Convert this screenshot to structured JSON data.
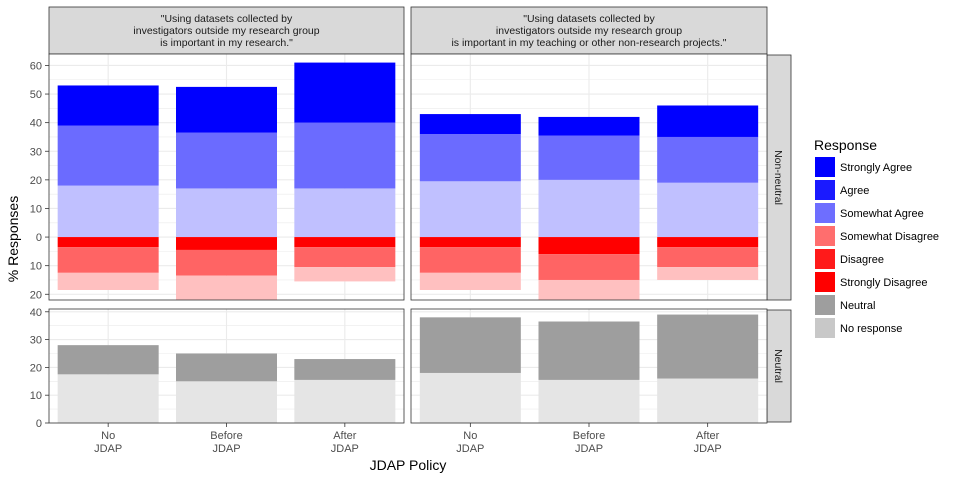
{
  "chart_data": {
    "type": "bar",
    "layout": "faceted stacked diverging bar chart",
    "xlabel": "JDAP Policy",
    "ylabel": "% Responses",
    "categories": [
      "No\nJDAP",
      "Before\nJDAP",
      "After\nJDAP"
    ],
    "columns": [
      "\"Using datasets collected by\ninvestigators outside my research group\nis important in my research.\"",
      "\"Using datasets collected by\ninvestigators outside my research group\nis important in my teaching or other non-research projects.\""
    ],
    "rows": [
      "Non-neutral",
      "Neutral"
    ],
    "row_ticks": {
      "Non-neutral": [
        "60",
        "50",
        "40",
        "30",
        "20",
        "10",
        "0",
        "10",
        "20"
      ],
      "Neutral": [
        "40",
        "30",
        "20",
        "10",
        "0"
      ]
    },
    "ylim": {
      "Non-neutral": [
        -22,
        64
      ],
      "Neutral": [
        0,
        41
      ]
    },
    "grid": true,
    "legend": {
      "title": "Response",
      "placement": "right",
      "items": [
        {
          "label": "Strongly Agree",
          "color": "#0000ff"
        },
        {
          "label": "Agree",
          "color": "#1a1aff"
        },
        {
          "label": "Somewhat Agree",
          "color": "#6e6eff"
        },
        {
          "label": "Somewhat Disagree",
          "color": "#ff6e6e"
        },
        {
          "label": "Disagree",
          "color": "#ff1a1a"
        },
        {
          "label": "Strongly Disagree",
          "color": "#ff0000"
        },
        {
          "label": "Neutral",
          "color": "#9e9e9e"
        },
        {
          "label": "No response",
          "color": "#c8c8c8"
        }
      ]
    },
    "panels": [
      {
        "column": 0,
        "row": "Non-neutral",
        "bars": [
          {
            "category": "No\nJDAP",
            "segments": [
              {
                "series": "Somewhat Agree",
                "value": 18,
                "color": "#c0c0ff"
              },
              {
                "series": "Agree",
                "value": 21,
                "color": "#6b6bff"
              },
              {
                "series": "Strongly Agree",
                "value": 14,
                "color": "#0000ff"
              },
              {
                "series": "Strongly Disagree",
                "value": -3.5,
                "color": "#ff0000"
              },
              {
                "series": "Disagree",
                "value": -9,
                "color": "#ff6464"
              },
              {
                "series": "Somewhat Disagree",
                "value": -6,
                "color": "#ffc0c0"
              }
            ]
          },
          {
            "category": "Before\nJDAP",
            "segments": [
              {
                "series": "Somewhat Agree",
                "value": 17,
                "color": "#c0c0ff"
              },
              {
                "series": "Agree",
                "value": 19.5,
                "color": "#6b6bff"
              },
              {
                "series": "Strongly Agree",
                "value": 16,
                "color": "#0000ff"
              },
              {
                "series": "Strongly Disagree",
                "value": -4.5,
                "color": "#ff0000"
              },
              {
                "series": "Disagree",
                "value": -9,
                "color": "#ff6464"
              },
              {
                "series": "Somewhat Disagree",
                "value": -8.5,
                "color": "#ffc0c0"
              }
            ]
          },
          {
            "category": "After\nJDAP",
            "segments": [
              {
                "series": "Somewhat Agree",
                "value": 17,
                "color": "#c0c0ff"
              },
              {
                "series": "Agree",
                "value": 23,
                "color": "#6b6bff"
              },
              {
                "series": "Strongly Agree",
                "value": 21,
                "color": "#0000ff"
              },
              {
                "series": "Strongly Disagree",
                "value": -3.5,
                "color": "#ff0000"
              },
              {
                "series": "Disagree",
                "value": -7,
                "color": "#ff6464"
              },
              {
                "series": "Somewhat Disagree",
                "value": -5,
                "color": "#ffc0c0"
              }
            ]
          }
        ]
      },
      {
        "column": 1,
        "row": "Non-neutral",
        "bars": [
          {
            "category": "No\nJDAP",
            "segments": [
              {
                "series": "Somewhat Agree",
                "value": 19.5,
                "color": "#c0c0ff"
              },
              {
                "series": "Agree",
                "value": 16.5,
                "color": "#6b6bff"
              },
              {
                "series": "Strongly Agree",
                "value": 7,
                "color": "#0000ff"
              },
              {
                "series": "Strongly Disagree",
                "value": -3.5,
                "color": "#ff0000"
              },
              {
                "series": "Disagree",
                "value": -9,
                "color": "#ff6464"
              },
              {
                "series": "Somewhat Disagree",
                "value": -6,
                "color": "#ffc0c0"
              }
            ]
          },
          {
            "category": "Before\nJDAP",
            "segments": [
              {
                "series": "Somewhat Agree",
                "value": 20,
                "color": "#c0c0ff"
              },
              {
                "series": "Agree",
                "value": 15.5,
                "color": "#6b6bff"
              },
              {
                "series": "Strongly Agree",
                "value": 6.5,
                "color": "#0000ff"
              },
              {
                "series": "Strongly Disagree",
                "value": -6,
                "color": "#ff0000"
              },
              {
                "series": "Disagree",
                "value": -9,
                "color": "#ff6464"
              },
              {
                "series": "Somewhat Disagree",
                "value": -7,
                "color": "#ffc0c0"
              }
            ]
          },
          {
            "category": "After\nJDAP",
            "segments": [
              {
                "series": "Somewhat Agree",
                "value": 19,
                "color": "#c0c0ff"
              },
              {
                "series": "Agree",
                "value": 16,
                "color": "#6b6bff"
              },
              {
                "series": "Strongly Agree",
                "value": 11,
                "color": "#0000ff"
              },
              {
                "series": "Strongly Disagree",
                "value": -3.5,
                "color": "#ff0000"
              },
              {
                "series": "Disagree",
                "value": -7,
                "color": "#ff6464"
              },
              {
                "series": "Somewhat Disagree",
                "value": -4.5,
                "color": "#ffc0c0"
              }
            ]
          }
        ]
      },
      {
        "column": 0,
        "row": "Neutral",
        "bars": [
          {
            "category": "No\nJDAP",
            "segments": [
              {
                "series": "No response",
                "value": 17.5,
                "color": "#e5e5e5"
              },
              {
                "series": "Neutral",
                "value": 10.5,
                "color": "#9e9e9e"
              }
            ]
          },
          {
            "category": "Before\nJDAP",
            "segments": [
              {
                "series": "No response",
                "value": 15,
                "color": "#e5e5e5"
              },
              {
                "series": "Neutral",
                "value": 10,
                "color": "#9e9e9e"
              }
            ]
          },
          {
            "category": "After\nJDAP",
            "segments": [
              {
                "series": "No response",
                "value": 15.5,
                "color": "#e5e5e5"
              },
              {
                "series": "Neutral",
                "value": 7.5,
                "color": "#9e9e9e"
              }
            ]
          }
        ]
      },
      {
        "column": 1,
        "row": "Neutral",
        "bars": [
          {
            "category": "No\nJDAP",
            "segments": [
              {
                "series": "No response",
                "value": 18,
                "color": "#e5e5e5"
              },
              {
                "series": "Neutral",
                "value": 20,
                "color": "#9e9e9e"
              }
            ]
          },
          {
            "category": "Before\nJDAP",
            "segments": [
              {
                "series": "No response",
                "value": 15.5,
                "color": "#e5e5e5"
              },
              {
                "series": "Neutral",
                "value": 21,
                "color": "#9e9e9e"
              }
            ]
          },
          {
            "category": "After\nJDAP",
            "segments": [
              {
                "series": "No response",
                "value": 16,
                "color": "#e5e5e5"
              },
              {
                "series": "Neutral",
                "value": 23,
                "color": "#9e9e9e"
              }
            ]
          }
        ]
      }
    ]
  }
}
